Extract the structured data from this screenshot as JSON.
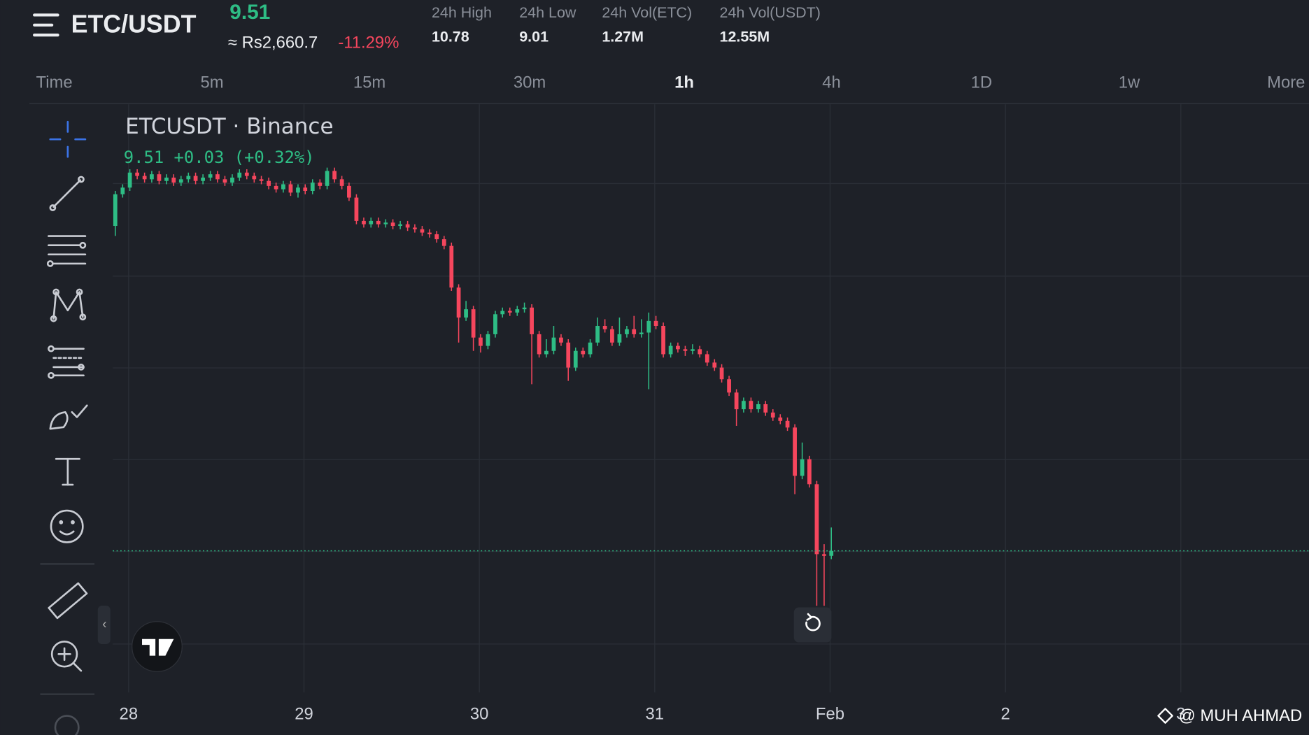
{
  "header": {
    "symbol": "ETC/USDT",
    "price": 9.51,
    "fiat_price": "≈ Rs2,660.7",
    "change": "-11.29%",
    "stats": [
      {
        "label": "24h High",
        "value": 10.78
      },
      {
        "label": "24h Low",
        "value": 9.01
      },
      {
        "label": "24h Vol(ETC)",
        "value": "1.27M"
      },
      {
        "label": "24h Vol(USDT)",
        "value": "12.55M"
      }
    ]
  },
  "tabs": [
    "Time",
    "5m",
    "15m",
    "30m",
    "1h",
    "4h",
    "1D",
    "1w",
    "More"
  ],
  "active_tab": "1h",
  "watermark": "@ MUH AHMAD",
  "chart_data": {
    "type": "candlestick",
    "title": "ETCUSDT · Binance",
    "legend_values": "9.51 +0.03 (+0.32%)",
    "up_color": "#2ebd85",
    "down_color": "#f6465d",
    "xlim": [
      27.91,
      34.73
    ],
    "ylim": [
      8.66,
      12.19
    ],
    "xticks": [
      28,
      29,
      30,
      31,
      {
        "value": 32,
        "label": "Feb"
      },
      {
        "value": 33,
        "label": "2"
      },
      {
        "value": 34,
        "label": "3"
      }
    ],
    "x": [
      27.924,
      27.966,
      28.007,
      28.049,
      28.091,
      28.132,
      28.174,
      28.216,
      28.257,
      28.299,
      28.341,
      28.382,
      28.424,
      28.466,
      28.507,
      28.549,
      28.591,
      28.632,
      28.674,
      28.716,
      28.757,
      28.799,
      28.841,
      28.882,
      28.924,
      28.966,
      29.007,
      29.049,
      29.091,
      29.132,
      29.174,
      29.216,
      29.257,
      29.299,
      29.341,
      29.382,
      29.424,
      29.466,
      29.507,
      29.549,
      29.591,
      29.632,
      29.674,
      29.716,
      29.757,
      29.799,
      29.841,
      29.882,
      29.924,
      29.966,
      30.007,
      30.049,
      30.091,
      30.132,
      30.174,
      30.216,
      30.257,
      30.299,
      30.341,
      30.382,
      30.424,
      30.466,
      30.507,
      30.549,
      30.591,
      30.632,
      30.674,
      30.716,
      30.757,
      30.799,
      30.841,
      30.882,
      30.924,
      30.966,
      31.007,
      31.049,
      31.091,
      31.132,
      31.174,
      31.216,
      31.257,
      31.299,
      31.341,
      31.382,
      31.424,
      31.466,
      31.507,
      31.549,
      31.591,
      31.632,
      31.674,
      31.716,
      31.757,
      31.799,
      31.841,
      31.882,
      31.924,
      31.966,
      32.007
    ],
    "ohlc": [
      [
        11.46,
        11.67,
        11.4,
        11.65
      ],
      [
        11.65,
        11.71,
        11.63,
        11.69
      ],
      [
        11.69,
        11.8,
        11.67,
        11.78
      ],
      [
        11.78,
        11.8,
        11.74,
        11.76
      ],
      [
        11.76,
        11.78,
        11.72,
        11.74
      ],
      [
        11.74,
        11.79,
        11.72,
        11.77
      ],
      [
        11.77,
        11.79,
        11.71,
        11.73
      ],
      [
        11.73,
        11.77,
        11.71,
        11.75
      ],
      [
        11.75,
        11.77,
        11.7,
        11.72
      ],
      [
        11.72,
        11.76,
        11.7,
        11.74
      ],
      [
        11.74,
        11.78,
        11.72,
        11.76
      ],
      [
        11.76,
        11.78,
        11.71,
        11.73
      ],
      [
        11.73,
        11.77,
        11.71,
        11.75
      ],
      [
        11.75,
        11.79,
        11.73,
        11.77
      ],
      [
        11.77,
        11.79,
        11.72,
        11.74
      ],
      [
        11.74,
        11.76,
        11.7,
        11.72
      ],
      [
        11.72,
        11.77,
        11.7,
        11.75
      ],
      [
        11.75,
        11.8,
        11.73,
        11.78
      ],
      [
        11.78,
        11.8,
        11.74,
        11.76
      ],
      [
        11.76,
        11.78,
        11.72,
        11.74
      ],
      [
        11.74,
        11.76,
        11.71,
        11.73
      ],
      [
        11.73,
        11.75,
        11.68,
        11.7
      ],
      [
        11.7,
        11.72,
        11.66,
        11.68
      ],
      [
        11.68,
        11.73,
        11.66,
        11.71
      ],
      [
        11.71,
        11.73,
        11.64,
        11.66
      ],
      [
        11.66,
        11.71,
        11.63,
        11.69
      ],
      [
        11.69,
        11.71,
        11.65,
        11.67
      ],
      [
        11.67,
        11.74,
        11.65,
        11.72
      ],
      [
        11.72,
        11.74,
        11.68,
        11.7
      ],
      [
        11.7,
        11.81,
        11.68,
        11.79
      ],
      [
        11.79,
        11.81,
        11.72,
        11.74
      ],
      [
        11.74,
        11.76,
        11.68,
        11.7
      ],
      [
        11.7,
        11.72,
        11.61,
        11.63
      ],
      [
        11.63,
        11.65,
        11.47,
        11.49
      ],
      [
        11.49,
        11.51,
        11.45,
        11.47
      ],
      [
        11.47,
        11.51,
        11.45,
        11.49
      ],
      [
        11.49,
        11.51,
        11.45,
        11.47
      ],
      [
        11.47,
        11.5,
        11.45,
        11.48
      ],
      [
        11.48,
        11.5,
        11.44,
        11.46
      ],
      [
        11.46,
        11.49,
        11.44,
        11.47
      ],
      [
        11.47,
        11.49,
        11.43,
        11.45
      ],
      [
        11.45,
        11.47,
        11.42,
        11.44
      ],
      [
        11.44,
        11.46,
        11.4,
        11.42
      ],
      [
        11.42,
        11.44,
        11.39,
        11.41
      ],
      [
        11.41,
        11.43,
        11.36,
        11.38
      ],
      [
        11.38,
        11.4,
        11.32,
        11.34
      ],
      [
        11.34,
        11.36,
        11.07,
        11.09
      ],
      [
        11.09,
        11.11,
        10.76,
        10.91
      ],
      [
        10.91,
        11.01,
        10.89,
        10.96
      ],
      [
        10.96,
        10.98,
        10.71,
        10.79
      ],
      [
        10.79,
        10.81,
        10.7,
        10.74
      ],
      [
        10.74,
        10.83,
        10.72,
        10.81
      ],
      [
        10.81,
        10.95,
        10.79,
        10.93
      ],
      [
        10.93,
        10.97,
        10.91,
        10.95
      ],
      [
        10.95,
        10.97,
        10.92,
        10.94
      ],
      [
        10.94,
        10.98,
        10.92,
        10.96
      ],
      [
        10.96,
        11.0,
        10.94,
        10.97
      ],
      [
        10.97,
        10.99,
        10.51,
        10.81
      ],
      [
        10.81,
        10.83,
        10.67,
        10.69
      ],
      [
        10.69,
        10.78,
        10.67,
        10.71
      ],
      [
        10.71,
        10.86,
        10.69,
        10.79
      ],
      [
        10.79,
        10.81,
        10.74,
        10.76
      ],
      [
        10.76,
        10.78,
        10.53,
        10.61
      ],
      [
        10.61,
        10.73,
        10.59,
        10.71
      ],
      [
        10.71,
        10.73,
        10.67,
        10.69
      ],
      [
        10.69,
        10.78,
        10.67,
        10.76
      ],
      [
        10.76,
        10.91,
        10.74,
        10.86
      ],
      [
        10.86,
        10.9,
        10.82,
        10.84
      ],
      [
        10.84,
        10.86,
        10.74,
        10.76
      ],
      [
        10.76,
        10.91,
        10.74,
        10.81
      ],
      [
        10.81,
        10.86,
        10.79,
        10.84
      ],
      [
        10.84,
        10.92,
        10.79,
        10.81
      ],
      [
        10.81,
        10.9,
        10.79,
        10.82
      ],
      [
        10.82,
        10.94,
        10.48,
        10.89
      ],
      [
        10.89,
        10.92,
        10.84,
        10.86
      ],
      [
        10.86,
        10.88,
        10.67,
        10.69
      ],
      [
        10.69,
        10.76,
        10.67,
        10.74
      ],
      [
        10.74,
        10.76,
        10.7,
        10.72
      ],
      [
        10.72,
        10.74,
        10.68,
        10.71
      ],
      [
        10.71,
        10.75,
        10.69,
        10.72
      ],
      [
        10.72,
        10.74,
        10.67,
        10.69
      ],
      [
        10.69,
        10.71,
        10.62,
        10.64
      ],
      [
        10.64,
        10.66,
        10.59,
        10.61
      ],
      [
        10.61,
        10.63,
        10.52,
        10.54
      ],
      [
        10.54,
        10.56,
        10.44,
        10.46
      ],
      [
        10.46,
        10.48,
        10.26,
        10.36
      ],
      [
        10.36,
        10.43,
        10.34,
        10.41
      ],
      [
        10.41,
        10.43,
        10.34,
        10.36
      ],
      [
        10.36,
        10.41,
        10.34,
        10.39
      ],
      [
        10.39,
        10.41,
        10.32,
        10.34
      ],
      [
        10.34,
        10.36,
        10.29,
        10.31
      ],
      [
        10.31,
        10.33,
        10.27,
        10.29
      ],
      [
        10.29,
        10.31,
        10.23,
        10.25
      ],
      [
        10.25,
        10.27,
        9.85,
        9.96
      ],
      [
        9.96,
        10.16,
        9.94,
        10.06
      ],
      [
        10.06,
        10.08,
        9.89,
        9.91
      ],
      [
        9.91,
        9.93,
        9.18,
        9.49
      ],
      [
        9.49,
        9.55,
        9.18,
        9.48
      ],
      [
        9.48,
        9.65,
        9.46,
        9.51
      ]
    ]
  }
}
